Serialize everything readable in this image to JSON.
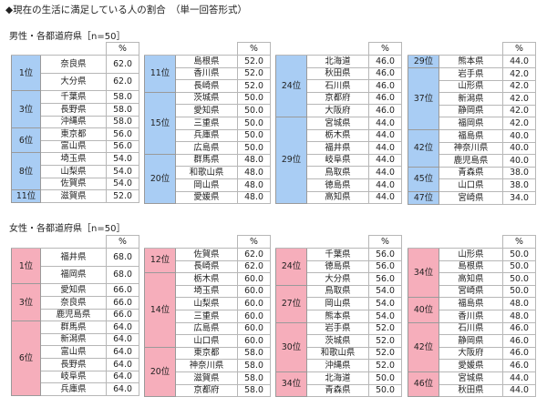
{
  "title": "◆現在の生活に満足している人の割合　（単一回答形式）",
  "male": {
    "label": "男性・各都道府県［n=50］",
    "pct_header": "%",
    "columns": [
      [
        {
          "rank": "1位",
          "rows": [
            [
              "奈良県",
              "62.0"
            ],
            [
              "大分県",
              "62.0"
            ]
          ],
          "tall": true
        },
        {
          "rank": "3位",
          "rows": [
            [
              "千葉県",
              "58.0"
            ],
            [
              "長野県",
              "58.0"
            ],
            [
              "沖縄県",
              "58.0"
            ]
          ]
        },
        {
          "rank": "6位",
          "rows": [
            [
              "東京都",
              "56.0"
            ],
            [
              "富山県",
              "56.0"
            ]
          ]
        },
        {
          "rank": "8位",
          "rows": [
            [
              "埼玉県",
              "54.0"
            ],
            [
              "山梨県",
              "54.0"
            ],
            [
              "佐賀県",
              "54.0"
            ]
          ]
        },
        {
          "rank": "11位",
          "rows": [
            [
              "滋賀県",
              "52.0"
            ]
          ]
        }
      ],
      [
        {
          "rank": "11位",
          "rows": [
            [
              "島根県",
              "52.0"
            ],
            [
              "香川県",
              "52.0"
            ],
            [
              "長崎県",
              "52.0"
            ]
          ]
        },
        {
          "rank": "15位",
          "rows": [
            [
              "茨城県",
              "50.0"
            ],
            [
              "愛知県",
              "50.0"
            ],
            [
              "三重県",
              "50.0"
            ],
            [
              "兵庫県",
              "50.0"
            ],
            [
              "広島県",
              "50.0"
            ]
          ]
        },
        {
          "rank": "20位",
          "rows": [
            [
              "群馬県",
              "48.0"
            ],
            [
              "和歌山県",
              "48.0"
            ],
            [
              "岡山県",
              "48.0"
            ],
            [
              "愛媛県",
              "48.0"
            ]
          ]
        }
      ],
      [
        {
          "rank": "24位",
          "rows": [
            [
              "北海道",
              "46.0"
            ],
            [
              "秋田県",
              "46.0"
            ],
            [
              "石川県",
              "46.0"
            ],
            [
              "京都府",
              "46.0"
            ],
            [
              "大阪府",
              "46.0"
            ]
          ]
        },
        {
          "rank": "29位",
          "rows": [
            [
              "宮城県",
              "44.0"
            ],
            [
              "栃木県",
              "44.0"
            ],
            [
              "福井県",
              "44.0"
            ],
            [
              "岐阜県",
              "44.0"
            ],
            [
              "鳥取県",
              "44.0"
            ],
            [
              "徳島県",
              "44.0"
            ],
            [
              "高知県",
              "44.0"
            ]
          ]
        }
      ],
      [
        {
          "rank": "29位",
          "rows": [
            [
              "熊本県",
              "44.0"
            ]
          ]
        },
        {
          "rank": "37位",
          "rows": [
            [
              "岩手県",
              "42.0"
            ],
            [
              "山形県",
              "42.0"
            ],
            [
              "新潟県",
              "42.0"
            ],
            [
              "静岡県",
              "42.0"
            ],
            [
              "福岡県",
              "42.0"
            ]
          ]
        },
        {
          "rank": "42位",
          "rows": [
            [
              "福島県",
              "40.0"
            ],
            [
              "神奈川県",
              "40.0"
            ],
            [
              "鹿児島県",
              "40.0"
            ]
          ]
        },
        {
          "rank": "45位",
          "rows": [
            [
              "青森県",
              "38.0"
            ],
            [
              "山口県",
              "38.0"
            ]
          ]
        },
        {
          "rank": "47位",
          "rows": [
            [
              "宮崎県",
              "34.0"
            ]
          ]
        }
      ]
    ]
  },
  "female": {
    "label": "女性・各都道府県［n=50］",
    "pct_header": "%",
    "columns": [
      [
        {
          "rank": "1位",
          "rows": [
            [
              "福井県",
              "68.0"
            ],
            [
              "福岡県",
              "68.0"
            ]
          ],
          "tall": true
        },
        {
          "rank": "3位",
          "rows": [
            [
              "愛知県",
              "66.0"
            ],
            [
              "奈良県",
              "66.0"
            ],
            [
              "鹿児島県",
              "66.0"
            ]
          ]
        },
        {
          "rank": "6位",
          "rows": [
            [
              "群馬県",
              "64.0"
            ],
            [
              "新潟県",
              "64.0"
            ],
            [
              "富山県",
              "64.0"
            ],
            [
              "長野県",
              "64.0"
            ],
            [
              "岐阜県",
              "64.0"
            ],
            [
              "兵庫県",
              "64.0"
            ]
          ]
        }
      ],
      [
        {
          "rank": "12位",
          "rows": [
            [
              "佐賀県",
              "62.0"
            ],
            [
              "長崎県",
              "62.0"
            ]
          ]
        },
        {
          "rank": "14位",
          "rows": [
            [
              "栃木県",
              "60.0"
            ],
            [
              "埼玉県",
              "60.0"
            ],
            [
              "山梨県",
              "60.0"
            ],
            [
              "三重県",
              "60.0"
            ],
            [
              "広島県",
              "60.0"
            ],
            [
              "山口県",
              "60.0"
            ]
          ]
        },
        {
          "rank": "20位",
          "rows": [
            [
              "東京都",
              "58.0"
            ],
            [
              "神奈川県",
              "58.0"
            ],
            [
              "滋賀県",
              "58.0"
            ],
            [
              "京都府",
              "58.0"
            ]
          ]
        }
      ],
      [
        {
          "rank": "24位",
          "rows": [
            [
              "千葉県",
              "56.0"
            ],
            [
              "徳島県",
              "56.0"
            ],
            [
              "大分県",
              "56.0"
            ]
          ]
        },
        {
          "rank": "27位",
          "rows": [
            [
              "鳥取県",
              "54.0"
            ],
            [
              "岡山県",
              "54.0"
            ],
            [
              "熊本県",
              "54.0"
            ]
          ]
        },
        {
          "rank": "30位",
          "rows": [
            [
              "岩手県",
              "52.0"
            ],
            [
              "茨城県",
              "52.0"
            ],
            [
              "和歌山県",
              "52.0"
            ],
            [
              "沖縄県",
              "52.0"
            ]
          ]
        },
        {
          "rank": "34位",
          "rows": [
            [
              "北海道",
              "50.0"
            ],
            [
              "青森県",
              "50.0"
            ]
          ]
        }
      ],
      [
        {
          "rank": "34位",
          "rows": [
            [
              "山形県",
              "50.0"
            ],
            [
              "島根県",
              "50.0"
            ],
            [
              "高知県",
              "50.0"
            ],
            [
              "宮崎県",
              "50.0"
            ]
          ]
        },
        {
          "rank": "40位",
          "rows": [
            [
              "福島県",
              "48.0"
            ],
            [
              "香川県",
              "48.0"
            ]
          ]
        },
        {
          "rank": "42位",
          "rows": [
            [
              "石川県",
              "46.0"
            ],
            [
              "静岡県",
              "46.0"
            ],
            [
              "大阪府",
              "46.0"
            ],
            [
              "愛媛県",
              "46.0"
            ]
          ]
        },
        {
          "rank": "46位",
          "rows": [
            [
              "宮城県",
              "44.0"
            ],
            [
              "秋田県",
              "44.0"
            ]
          ]
        }
      ]
    ]
  }
}
